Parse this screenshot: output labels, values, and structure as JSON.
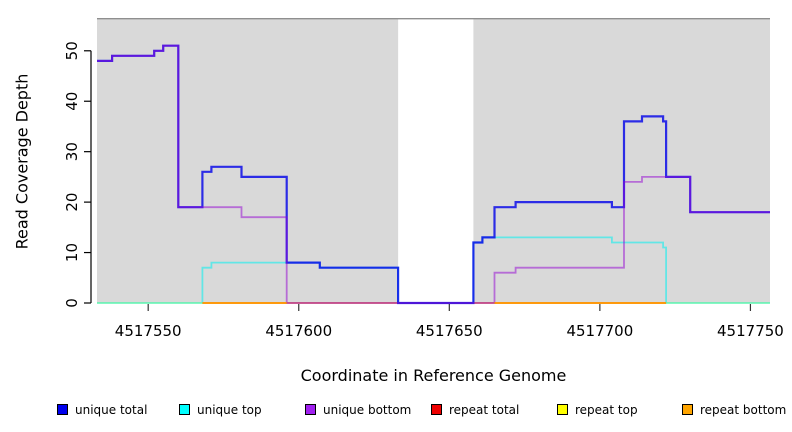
{
  "chart_data": {
    "type": "step",
    "title": "",
    "xlabel": "Coordinate in Reference Genome",
    "ylabel": "Read Coverage Depth",
    "x_ticks": [
      4517550,
      4517600,
      4517650,
      4517700,
      4517750
    ],
    "y_ticks": [
      0,
      10,
      20,
      30,
      40,
      50
    ],
    "xlim": [
      4517533,
      4517756.5
    ],
    "ylim": [
      0,
      56.5
    ],
    "plot_bg": "#d9d9d9",
    "gap_region": {
      "x_start": 4517633,
      "x_end": 4517658,
      "color": "#ffffff"
    },
    "series": [
      {
        "label": "repeat top",
        "color": "#FFFF00",
        "opacity": 0.55,
        "line_width": 1.6,
        "segments": [
          [
            [
              4517533,
              0
            ],
            [
              4517756.5,
              0
            ]
          ]
        ]
      },
      {
        "label": "repeat total",
        "color": "#E00000",
        "opacity": 0.5,
        "line_width": 1.6,
        "segments": [
          [
            [
              4517568,
              0
            ],
            [
              4517722,
              0
            ]
          ]
        ]
      },
      {
        "label": "unique top",
        "color": "#00F0F0",
        "opacity": 0.55,
        "line_width": 1.8,
        "segments": [
          [
            [
              4517533,
              0
            ],
            [
              4517568,
              7
            ],
            [
              4517571,
              8
            ],
            [
              4517607,
              7
            ],
            [
              4517633,
              0
            ],
            [
              4517658,
              12
            ],
            [
              4517661,
              13
            ],
            [
              4517704,
              12
            ],
            [
              4517721,
              11
            ],
            [
              4517722,
              0
            ],
            [
              4517756.5,
              0
            ]
          ]
        ]
      },
      {
        "label": "unique total",
        "color": "#0000E8",
        "opacity": 0.8,
        "line_width": 2.2,
        "segments": [
          [
            [
              4517533,
              48
            ],
            [
              4517538,
              49
            ],
            [
              4517552,
              50
            ],
            [
              4517555,
              51
            ],
            [
              4517560,
              19
            ],
            [
              4517568,
              26
            ],
            [
              4517571,
              27
            ],
            [
              4517581,
              25
            ],
            [
              4517596,
              8
            ],
            [
              4517607,
              7
            ],
            [
              4517633,
              0
            ],
            [
              4517658,
              12
            ],
            [
              4517661,
              13
            ],
            [
              4517665,
              19
            ],
            [
              4517672,
              20
            ],
            [
              4517704,
              19
            ],
            [
              4517708,
              36
            ],
            [
              4517714,
              37
            ],
            [
              4517721,
              36
            ],
            [
              4517722,
              25
            ],
            [
              4517730,
              18
            ],
            [
              4517756.5,
              18
            ]
          ]
        ]
      },
      {
        "label": "unique bottom",
        "color": "#9400D3",
        "opacity": 0.5,
        "line_width": 1.8,
        "segments": [
          [
            [
              4517533,
              48
            ],
            [
              4517538,
              49
            ],
            [
              4517552,
              50
            ],
            [
              4517555,
              51
            ],
            [
              4517560,
              19
            ],
            [
              4517581,
              17
            ],
            [
              4517596,
              0
            ],
            [
              4517665,
              6
            ],
            [
              4517672,
              7
            ],
            [
              4517708,
              24
            ],
            [
              4517714,
              25
            ],
            [
              4517730,
              18
            ],
            [
              4517756.5,
              18
            ]
          ]
        ]
      },
      {
        "label": "repeat bottom",
        "color": "#FF9900",
        "opacity": 0.85,
        "line_width": 2,
        "segments": [
          [
            [
              4517568,
              0
            ],
            [
              4517596,
              0
            ]
          ],
          [
            [
              4517665,
              0
            ],
            [
              4517722,
              0
            ]
          ]
        ]
      }
    ],
    "legend": [
      {
        "label": "unique total",
        "color": "#0000EE"
      },
      {
        "label": "unique top",
        "color": "#00FFFF"
      },
      {
        "label": "unique bottom",
        "color": "#A020F0"
      },
      {
        "label": "repeat total",
        "color": "#EE0000"
      },
      {
        "label": "repeat top",
        "color": "#FFFF00"
      },
      {
        "label": "repeat bottom",
        "color": "#FFA500"
      }
    ]
  }
}
